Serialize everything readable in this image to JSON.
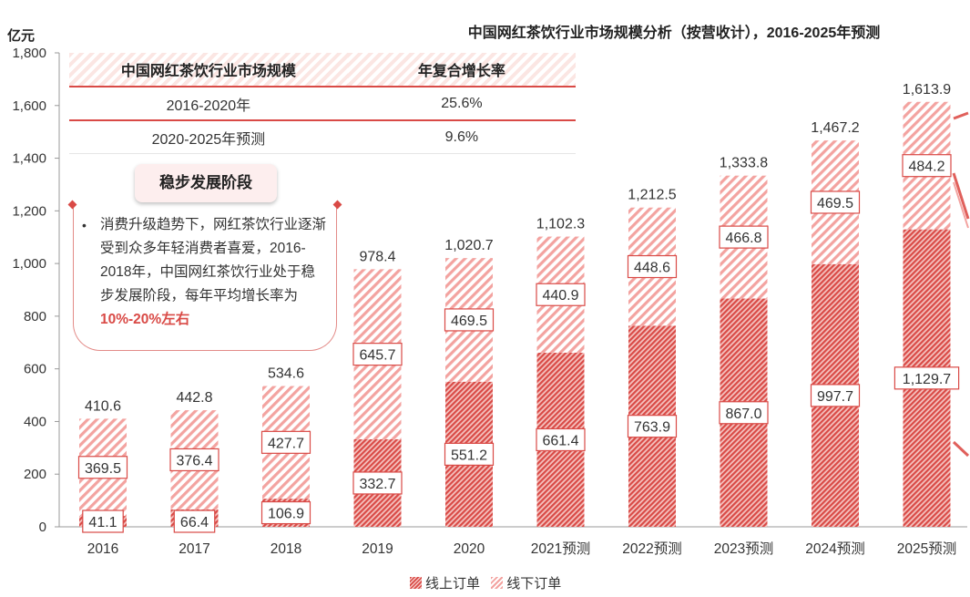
{
  "chart_data": {
    "type": "bar",
    "stacked": true,
    "title": "中国网红茶饮行业市场规模分析（按营收计），2016-2025年预测",
    "ylabel": "亿元",
    "ylim": [
      0,
      1800
    ],
    "yticks": [
      "0",
      "200",
      "400",
      "600",
      "800",
      "1,000",
      "1,200",
      "1,400",
      "1,600",
      "1,800"
    ],
    "categories": [
      "2016",
      "2017",
      "2018",
      "2019",
      "2020",
      "2021预测",
      "2022预测",
      "2023预测",
      "2024预测",
      "2025预测"
    ],
    "series": [
      {
        "name": "线上订单",
        "values": [
          41.1,
          66.4,
          106.9,
          332.7,
          551.2,
          661.4,
          763.9,
          867.0,
          997.7,
          1129.7
        ],
        "labels": [
          "41.1",
          "66.4",
          "106.9",
          "332.7",
          "551.2",
          "661.4",
          "763.9",
          "867.0",
          "997.7",
          "1,129.7"
        ]
      },
      {
        "name": "线下订单",
        "values": [
          369.5,
          376.4,
          427.7,
          645.7,
          469.5,
          440.9,
          448.6,
          466.8,
          469.5,
          484.2
        ],
        "labels": [
          "369.5",
          "376.4",
          "427.7",
          "645.7",
          "469.5",
          "440.9",
          "448.6",
          "466.8",
          "469.5",
          "484.2"
        ]
      }
    ],
    "totals": [
      "410.6",
      "442.8",
      "534.6",
      "978.4",
      "1,020.7",
      "1,102.3",
      "1,212.5",
      "1,333.8",
      "1,467.2",
      "1,613.9"
    ],
    "totals_values": [
      410.6,
      442.8,
      534.6,
      978.4,
      1020.7,
      1102.3,
      1212.5,
      1333.8,
      1467.2,
      1613.9
    ],
    "grid": false,
    "legend": "bottom",
    "colors": {
      "online": "#d94a46",
      "offline": "#f3a3a0"
    }
  },
  "summary_table": {
    "headers": [
      "中国网红茶饮行业市场规模",
      "年复合增长率"
    ],
    "rows": [
      {
        "period": "2016-2020年",
        "cagr": "25.6%"
      },
      {
        "period": "2020-2025年预测",
        "cagr": "9.6%"
      }
    ]
  },
  "annotation": {
    "badge": "稳步发展阶段",
    "bullet": "•",
    "text": "消费升级趋势下，网红茶饮行业逐渐受到众多年轻消费者喜爱，2016-2018年，中国网红茶饮行业处于稳步发展阶段，每年平均增长率为",
    "highlight": "10%-20%左右"
  }
}
